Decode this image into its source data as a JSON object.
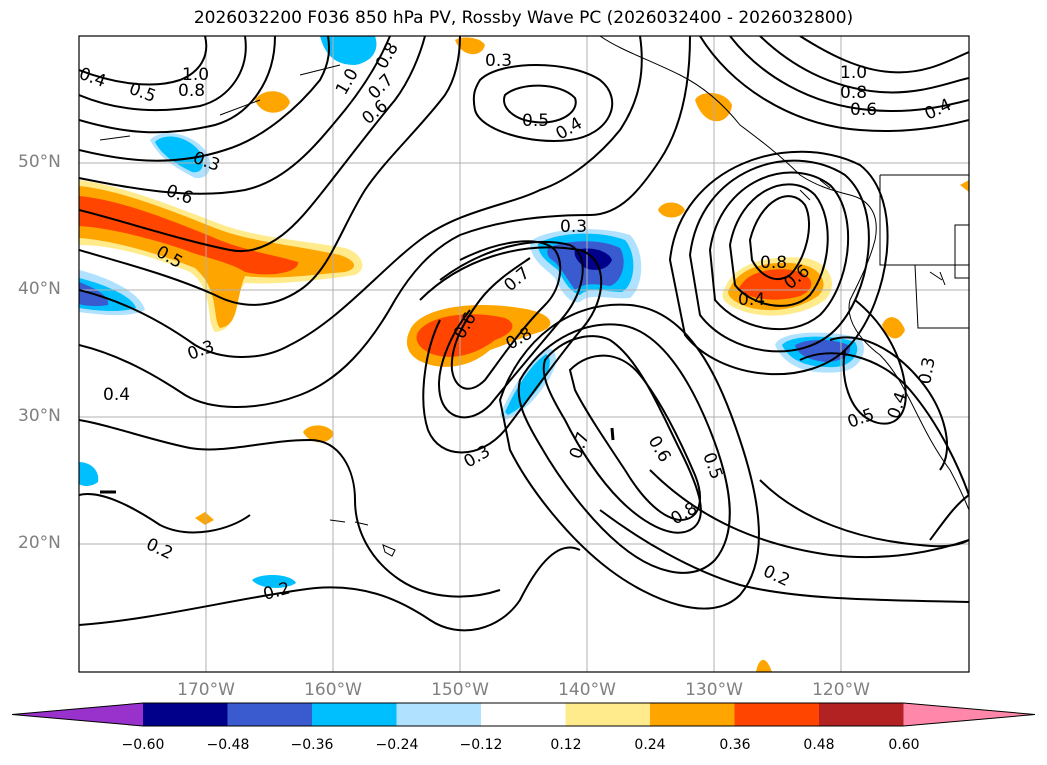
{
  "title": "2026032200 F036 850 hPa PV, Rossby Wave PC (2026032400 - 2026032800)",
  "map": {
    "lat_ticks": [
      "50°N",
      "40°N",
      "30°N",
      "20°N"
    ],
    "lon_ticks": [
      "170°W",
      "160°W",
      "150°W",
      "140°W",
      "130°W",
      "120°W"
    ],
    "contour_labels": [
      "1.0",
      "0.8",
      "0.5",
      "0.4",
      "0.3",
      "0.5",
      "0.4",
      "0.3",
      "0.6",
      "0.5",
      "0.3",
      "0.4",
      "0.6",
      "0.8",
      "0.7",
      "0.3",
      "0.3",
      "0.2",
      "0.2",
      "0.7",
      "0.6",
      "0.5",
      "0.8",
      "0.2",
      "0.8",
      "0.6",
      "0.4",
      "0.5",
      "0.4",
      "0.3",
      "1.0",
      "0.8",
      "0.6",
      "0.4",
      "0.6",
      "0.7",
      "1.0",
      "0.8"
    ]
  },
  "colorbar": {
    "labels": [
      "−0.60",
      "−0.48",
      "−0.36",
      "−0.24",
      "−0.12",
      "0.12",
      "0.24",
      "0.36",
      "0.48",
      "0.60"
    ],
    "colors": [
      "#9932cc",
      "#00008b",
      "#3a5bd0",
      "#00bfff",
      "#b0e2ff",
      "#ffffff",
      "#ffeb8c",
      "#ffa500",
      "#ff4500",
      "#b22222",
      "#ff88aa"
    ]
  }
}
